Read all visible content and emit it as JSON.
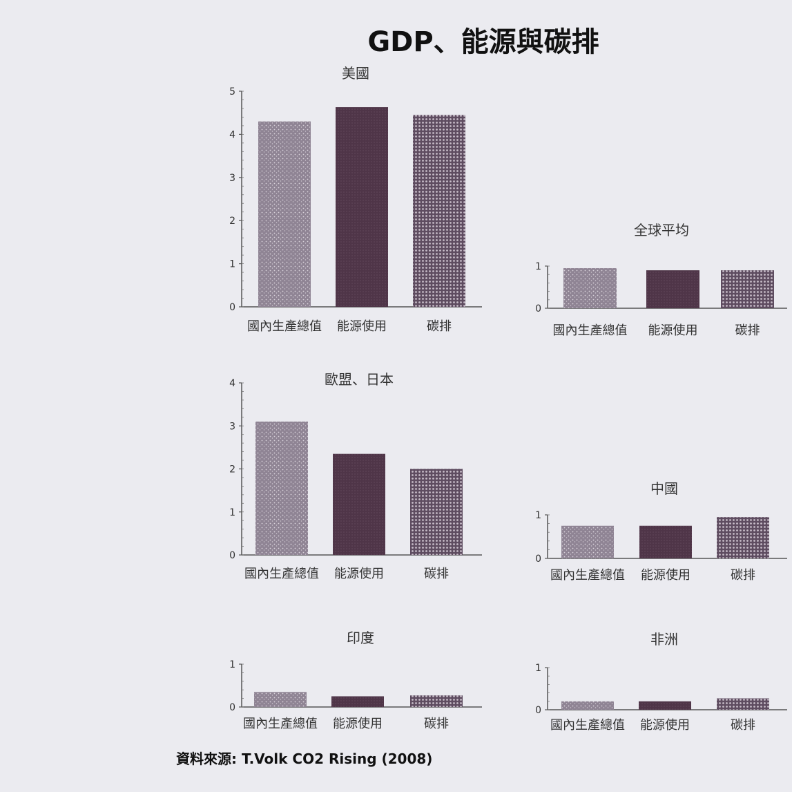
{
  "title": "GDP、能源與碳排",
  "source": "資料來源: T.Volk CO2 Rising (2008)",
  "colors": {
    "gdp": "#8f8494",
    "energy": "#4f3548",
    "carbon": "#a99aa9"
  },
  "chart_data": [
    {
      "type": "bar",
      "title": "美國",
      "categories": [
        "國內生產總值",
        "能源使用",
        "碳排"
      ],
      "values": [
        4.3,
        4.63,
        4.45
      ],
      "ylim": [
        0,
        5
      ],
      "yticks": [
        0,
        1,
        2,
        3,
        4,
        5
      ]
    },
    {
      "type": "bar",
      "title": "全球平均",
      "categories": [
        "國內生產總值",
        "能源使用",
        "碳排"
      ],
      "values": [
        0.95,
        0.9,
        0.9
      ],
      "ylim": [
        0,
        1
      ],
      "yticks": [
        0,
        1
      ]
    },
    {
      "type": "bar",
      "title": "歐盟、日本",
      "categories": [
        "國內生產總值",
        "能源使用",
        "碳排"
      ],
      "values": [
        3.1,
        2.35,
        2.0
      ],
      "ylim": [
        0,
        4
      ],
      "yticks": [
        0,
        1,
        2,
        3,
        4
      ]
    },
    {
      "type": "bar",
      "title": "中國",
      "categories": [
        "國內生產總值",
        "能源使用",
        "碳排"
      ],
      "values": [
        0.75,
        0.75,
        0.95
      ],
      "ylim": [
        0,
        1
      ],
      "yticks": [
        0,
        1
      ]
    },
    {
      "type": "bar",
      "title": "印度",
      "categories": [
        "國內生產總值",
        "能源使用",
        "碳排"
      ],
      "values": [
        0.35,
        0.25,
        0.27
      ],
      "ylim": [
        0,
        1
      ],
      "yticks": [
        0,
        1
      ]
    },
    {
      "type": "bar",
      "title": "非洲",
      "categories": [
        "國內生產總值",
        "能源使用",
        "碳排"
      ],
      "values": [
        0.2,
        0.2,
        0.27
      ],
      "ylim": [
        0,
        1
      ],
      "yticks": [
        0,
        1
      ]
    }
  ]
}
